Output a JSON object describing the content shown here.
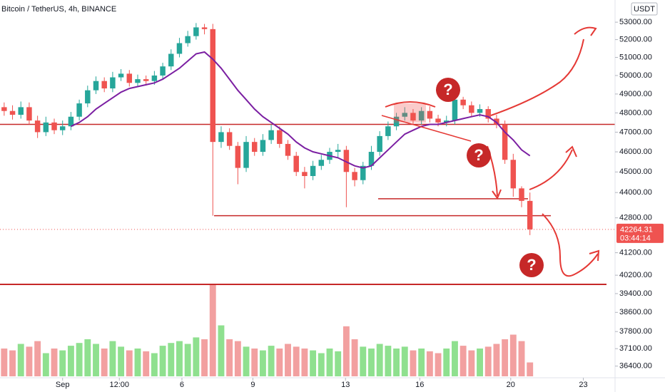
{
  "chart_data": {
    "type": "candlestick",
    "title": "Bitcoin / TetherUS, 4h, BINANCE",
    "currency": "USDT",
    "countdown": "03:44:14",
    "log_scale": true,
    "x": [
      0,
      1,
      2,
      3,
      4,
      5,
      6,
      7,
      8,
      9,
      10,
      11,
      12,
      13,
      14,
      15,
      16,
      17,
      18,
      19,
      20,
      21,
      22,
      23,
      24,
      25,
      26,
      27,
      28,
      29,
      30,
      31,
      32,
      33,
      34,
      35,
      36,
      37,
      38,
      39,
      40,
      41,
      42,
      43,
      44,
      45,
      46,
      47,
      48,
      49,
      50,
      51,
      52,
      53,
      54,
      55,
      56,
      57,
      58,
      59,
      60,
      61,
      62,
      63
    ],
    "open": [
      48300,
      48100,
      47900,
      48300,
      47600,
      47000,
      47500,
      47100,
      47300,
      47800,
      48500,
      49200,
      49700,
      49300,
      49900,
      50100,
      49600,
      49800,
      49700,
      50000,
      50500,
      51200,
      51800,
      52200,
      52700,
      52600,
      46500,
      47000,
      46300,
      45200,
      46500,
      46000,
      46600,
      47100,
      46400,
      45800,
      45000,
      44800,
      45300,
      45600,
      46000,
      46100,
      45000,
      44600,
      45300,
      46000,
      46800,
      47300,
      47800,
      48000,
      47600,
      48100,
      47700,
      47500,
      47600,
      48700,
      48400,
      48000,
      48200,
      47700,
      47400,
      45600,
      44200,
      43600
    ],
    "high": [
      48550,
      48400,
      48600,
      48550,
      47850,
      47800,
      47700,
      47600,
      48050,
      48700,
      49450,
      49950,
      49900,
      50200,
      50350,
      50300,
      50050,
      50000,
      50250,
      50700,
      51450,
      52100,
      52500,
      52950,
      52900,
      52900,
      47300,
      47200,
      46500,
      46800,
      46700,
      46900,
      47400,
      47300,
      46600,
      46000,
      45250,
      45550,
      45850,
      46200,
      46400,
      46300,
      45200,
      45500,
      46300,
      47050,
      47550,
      48000,
      48300,
      48200,
      48300,
      48350,
      47900,
      47850,
      48850,
      48850,
      48600,
      48450,
      48350,
      47900,
      47600,
      45900,
      44300,
      44000
    ],
    "low": [
      47850,
      47650,
      47700,
      47400,
      46700,
      46800,
      46900,
      46850,
      47100,
      47600,
      48300,
      49000,
      49100,
      49100,
      49700,
      49400,
      49400,
      49450,
      49500,
      49800,
      50300,
      51000,
      51600,
      52000,
      52300,
      42900,
      46200,
      46100,
      44400,
      45000,
      45800,
      45800,
      46400,
      46200,
      45600,
      44800,
      44200,
      44600,
      45100,
      45400,
      45700,
      43300,
      44300,
      44400,
      45100,
      45800,
      46600,
      47100,
      47600,
      47400,
      47400,
      47500,
      47300,
      47300,
      47400,
      48200,
      47800,
      47800,
      47500,
      47200,
      45400,
      43800,
      43300,
      42000
    ],
    "close": [
      48100,
      47900,
      48300,
      47600,
      47000,
      47500,
      47100,
      47300,
      47800,
      48500,
      49200,
      49700,
      49300,
      49900,
      50100,
      49600,
      49800,
      49700,
      50000,
      50500,
      51200,
      51800,
      52200,
      52700,
      52600,
      46500,
      47000,
      46300,
      45200,
      46500,
      46000,
      46600,
      47100,
      46400,
      45800,
      45000,
      44800,
      45300,
      45600,
      46000,
      46100,
      45000,
      44600,
      45300,
      46000,
      46800,
      47300,
      47800,
      48000,
      47600,
      48100,
      47700,
      47500,
      47600,
      48700,
      48400,
      48000,
      48200,
      47700,
      47400,
      45600,
      44200,
      43600,
      42264.31
    ],
    "volume": [
      30,
      28,
      35,
      32,
      38,
      25,
      30,
      28,
      33,
      36,
      40,
      35,
      30,
      38,
      32,
      28,
      30,
      27,
      25,
      33,
      36,
      38,
      35,
      42,
      40,
      100,
      55,
      40,
      38,
      32,
      30,
      28,
      33,
      30,
      35,
      32,
      30,
      28,
      25,
      30,
      27,
      54,
      40,
      32,
      30,
      35,
      33,
      30,
      32,
      28,
      30,
      27,
      25,
      30,
      38,
      33,
      28,
      30,
      32,
      35,
      40,
      45,
      38,
      15
    ],
    "ma": {
      "color": "#7b1fa2",
      "values": [
        null,
        null,
        null,
        null,
        null,
        null,
        null,
        null,
        47300,
        47500,
        47800,
        48200,
        48500,
        48800,
        49100,
        49300,
        49400,
        49500,
        49600,
        49800,
        50100,
        50400,
        50800,
        51200,
        51300,
        50900,
        50400,
        49800,
        49200,
        48700,
        48200,
        47800,
        47500,
        47200,
        46900,
        46500,
        46200,
        46000,
        45900,
        45800,
        45700,
        45500,
        45300,
        45200,
        45300,
        45700,
        46100,
        46500,
        46900,
        47100,
        47300,
        47400,
        47400,
        47500,
        47600,
        47700,
        47800,
        47900,
        47800,
        47500,
        47000,
        46600,
        46100,
        45800
      ]
    },
    "up_color": "#26a69a",
    "down_color": "#ef5350",
    "volume_up_color": "#8fe08f",
    "volume_down_color": "#f2a0a0",
    "level_color": "#c62828",
    "levels": [
      47400,
      42900,
      43700,
      39800
    ],
    "question_marks": [
      "?",
      "?",
      "?"
    ],
    "xlim": [
      -0.5,
      73.2
    ],
    "xticks": [
      {
        "value": 7.0,
        "label": "Sep"
      },
      {
        "value": 13.8,
        "label": "12:00"
      },
      {
        "value": 21.3,
        "label": "6"
      },
      {
        "value": 29.8,
        "label": "9"
      },
      {
        "value": 40.9,
        "label": "13"
      },
      {
        "value": 49.8,
        "label": "16"
      },
      {
        "value": 60.7,
        "label": "20"
      },
      {
        "value": 69.4,
        "label": "23"
      }
    ],
    "ylim": [
      35940,
      54300
    ],
    "yticks": [
      {
        "value": 53000,
        "label": "53000.00"
      },
      {
        "value": 52000,
        "label": "52000.00"
      },
      {
        "value": 51000,
        "label": "51000.00"
      },
      {
        "value": 50000,
        "label": "50000.00"
      },
      {
        "value": 49000,
        "label": "49000.00"
      },
      {
        "value": 48000,
        "label": "48000.00"
      },
      {
        "value": 47000,
        "label": "47000.00"
      },
      {
        "value": 46000,
        "label": "46000.00"
      },
      {
        "value": 45000,
        "label": "45000.00"
      },
      {
        "value": 44000,
        "label": "44000.00"
      },
      {
        "value": 42800,
        "label": "42800.00"
      },
      {
        "value": 41200,
        "label": "41200.00"
      },
      {
        "value": 40200,
        "label": "40200.00"
      },
      {
        "value": 39400,
        "label": "39400.00"
      },
      {
        "value": 38600,
        "label": "38600.00"
      },
      {
        "value": 37800,
        "label": "37800.00"
      },
      {
        "value": 37100,
        "label": "37100.00"
      },
      {
        "value": 36400,
        "label": "36400.00"
      }
    ]
  }
}
